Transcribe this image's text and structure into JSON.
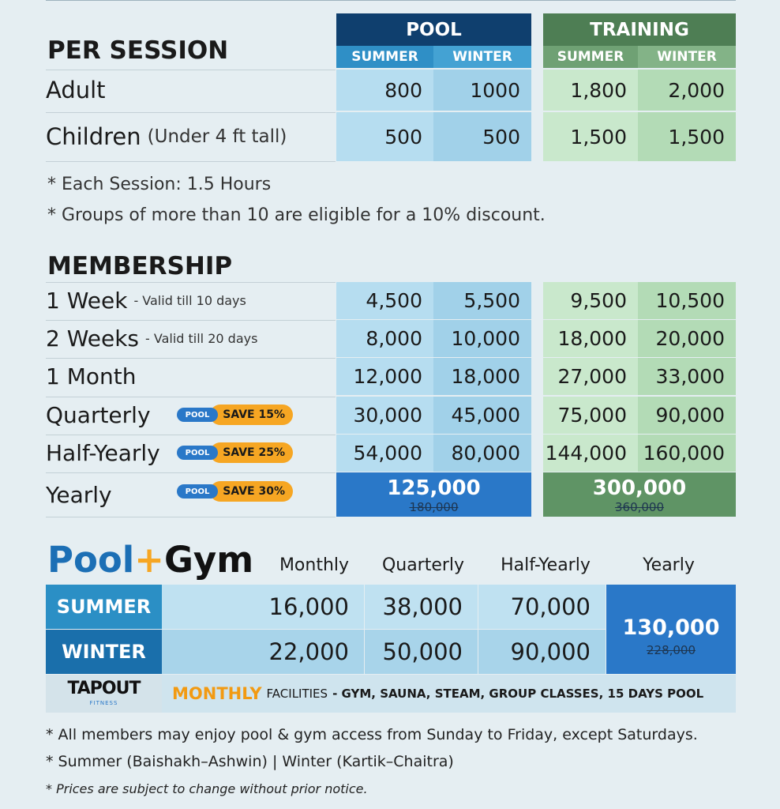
{
  "per_session": {
    "title": "PER SESSION",
    "groups": [
      {
        "label": "POOL",
        "columns": [
          "SUMMER",
          "WINTER"
        ]
      },
      {
        "label": "TRAINING",
        "columns": [
          "SUMMER",
          "WINTER"
        ]
      }
    ],
    "rows": [
      {
        "label": "Adult",
        "values": [
          "800",
          "1000",
          "1,800",
          "2,000"
        ]
      },
      {
        "label": "Children",
        "sublabel": "(Under 4 ft tall)",
        "values": [
          "500",
          "500",
          "1,500",
          "1,500"
        ]
      }
    ],
    "notes": [
      "* Each Session: 1.5 Hours",
      "* Groups of more than 10 are eligible for a 10% discount."
    ]
  },
  "membership": {
    "title": "MEMBERSHIP",
    "rows": [
      {
        "label": "1 Week",
        "sublabel": "- Valid till 10 days",
        "values": [
          "4,500",
          "5,500",
          "9,500",
          "10,500"
        ]
      },
      {
        "label": "2 Weeks",
        "sublabel": "- Valid till 20 days",
        "values": [
          "8,000",
          "10,000",
          "18,000",
          "20,000"
        ]
      },
      {
        "label": "1 Month",
        "values": [
          "12,000",
          "18,000",
          "27,000",
          "33,000"
        ]
      },
      {
        "label": "Quarterly",
        "badge": "POOL",
        "save": "SAVE 15%",
        "values": [
          "30,000",
          "45,000",
          "75,000",
          "90,000"
        ]
      },
      {
        "label": "Half-Yearly",
        "badge": "POOL",
        "save": "SAVE 25%",
        "values": [
          "54,000",
          "80,000",
          "144,000",
          "160,000"
        ]
      }
    ],
    "yearly": {
      "label": "Yearly",
      "badge": "POOL",
      "save": "SAVE 30%",
      "totals": [
        {
          "price": "125,000",
          "original": "180,000"
        },
        {
          "price": "300,000",
          "original": "360,000"
        }
      ]
    }
  },
  "pool_gym": {
    "title": [
      "Pool",
      "+",
      "Gym"
    ],
    "columns": [
      "Monthly",
      "Quarterly",
      "Half-Yearly",
      "Yearly"
    ],
    "rows": [
      {
        "label": "SUMMER",
        "values": [
          "16,000",
          "38,000",
          "70,000"
        ]
      },
      {
        "label": "WINTER",
        "values": [
          "22,000",
          "50,000",
          "90,000"
        ]
      }
    ],
    "yearly": {
      "price": "130,000",
      "original": "228,000"
    },
    "facilities": {
      "logo": "TAPOUT",
      "logo_sub": "FITNESS",
      "highlight": "MONTHLY",
      "text": "FACILITIES",
      "detail": "- GYM, SAUNA, STEAM, GROUP CLASSES, 15 DAYS POOL"
    }
  },
  "notes": [
    "* All members may enjoy pool & gym access from Sunday to Friday, except Saturdays.",
    "* Summer (Baishakh–Ashwin) | Winter (Kartik–Chaitra)",
    "* Prices are subject to change without prior notice."
  ]
}
